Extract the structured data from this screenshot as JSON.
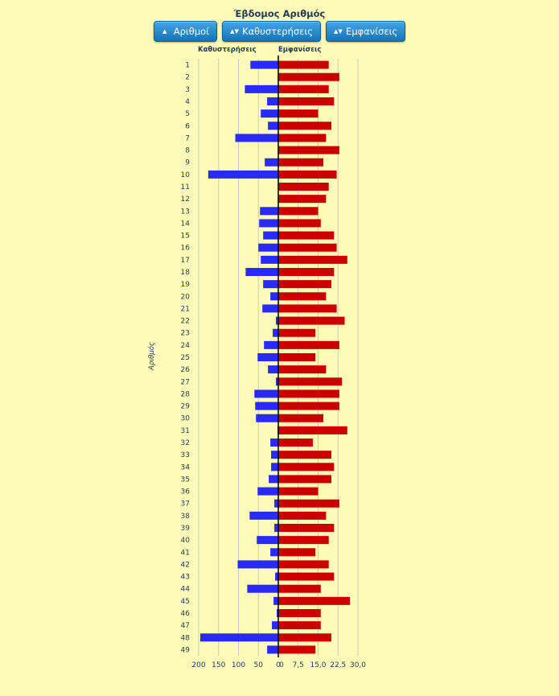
{
  "title": "Έβδομος Αριθμός",
  "buttons": [
    {
      "label": "Αριθμοί",
      "icon": "triangle-up-icon",
      "glyph": "▲"
    },
    {
      "label": "Καθυστερήσεις",
      "icon": "sort-icon",
      "glyph": "▲▼"
    },
    {
      "label": "Εμφανίσεις",
      "icon": "sort-icon",
      "glyph": "▲▼"
    }
  ],
  "colors": {
    "delays": "#2a2af5",
    "appearances": "#cc0000",
    "background": "#fdfbb7",
    "grid": "#c9c9c9",
    "axis": "#000000"
  },
  "chart_data": {
    "type": "bar",
    "orientation": "horizontal",
    "title": "Έβδομος Αριθμός",
    "ylabel": "Αριθμός",
    "categories": [
      "1",
      "2",
      "3",
      "4",
      "5",
      "6",
      "7",
      "8",
      "9",
      "10",
      "11",
      "12",
      "13",
      "14",
      "15",
      "16",
      "17",
      "18",
      "19",
      "20",
      "21",
      "22",
      "23",
      "24",
      "25",
      "26",
      "27",
      "28",
      "29",
      "30",
      "31",
      "32",
      "33",
      "34",
      "35",
      "36",
      "37",
      "38",
      "39",
      "40",
      "41",
      "42",
      "43",
      "44",
      "45",
      "46",
      "47",
      "48",
      "49"
    ],
    "series": [
      {
        "name": "Καθυστερήσεις",
        "side": "left",
        "ticks": [
          "200",
          "150",
          "100",
          "50",
          "0"
        ],
        "xlim": [
          0,
          200
        ],
        "values": [
          70,
          0,
          84,
          28,
          44,
          26,
          108,
          0,
          34,
          176,
          0,
          0,
          46,
          48,
          38,
          50,
          44,
          82,
          38,
          20,
          40,
          6,
          14,
          36,
          52,
          26,
          6,
          60,
          58,
          56,
          2,
          20,
          18,
          18,
          24,
          52,
          10,
          72,
          10,
          54,
          20,
          102,
          8,
          78,
          12,
          4,
          16,
          196,
          28
        ]
      },
      {
        "name": "Εμφανίσεις",
        "side": "right",
        "ticks": [
          "0",
          "7,5",
          "15,0",
          "22,5",
          "30,0"
        ],
        "xlim": [
          0,
          30
        ],
        "values": [
          19,
          23,
          19,
          21,
          15,
          20,
          18,
          23,
          17,
          22,
          19,
          18,
          15,
          16,
          21,
          22,
          26,
          21,
          20,
          18,
          22,
          25,
          14,
          23,
          14,
          18,
          24,
          23,
          23,
          17,
          26,
          13,
          20,
          21,
          20,
          15,
          23,
          18,
          21,
          19,
          14,
          19,
          21,
          16,
          27,
          16,
          16,
          20,
          14
        ]
      }
    ]
  }
}
